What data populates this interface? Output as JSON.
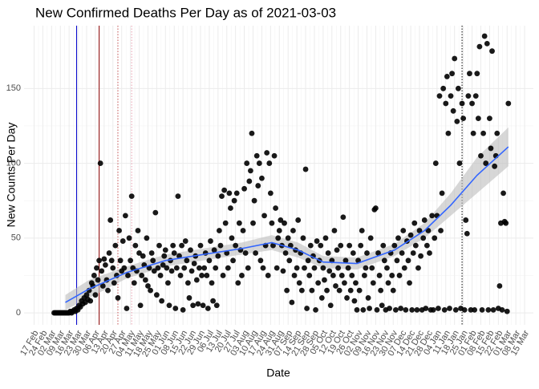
{
  "chart_data": {
    "type": "scatter",
    "title": "New Confirmed Deaths Per Day as of 2021-03-03",
    "x_label": "Date",
    "y_label": "New Counts Per Day",
    "xlim": [
      "2020-02-09",
      "2021-03-22"
    ],
    "ylim": [
      -8,
      192
    ],
    "yticks": [
      0,
      50,
      100,
      150
    ],
    "xticks": [
      {
        "value": "2020-02-17",
        "label": "17 Feb"
      },
      {
        "value": "2020-02-24",
        "label": "24 Feb"
      },
      {
        "value": "2020-03-02",
        "label": "02 Mar"
      },
      {
        "value": "2020-03-09",
        "label": "09 Mar"
      },
      {
        "value": "2020-03-16",
        "label": "16 Mar"
      },
      {
        "value": "2020-03-23",
        "label": "23 Mar"
      },
      {
        "value": "2020-03-30",
        "label": "30 Mar"
      },
      {
        "value": "2020-04-06",
        "label": "06 Apr"
      },
      {
        "value": "2020-04-13",
        "label": "13 Apr"
      },
      {
        "value": "2020-04-20",
        "label": "20 Apr"
      },
      {
        "value": "2020-04-27",
        "label": "27 Apr"
      },
      {
        "value": "2020-05-04",
        "label": "04 May"
      },
      {
        "value": "2020-05-11",
        "label": "11 May"
      },
      {
        "value": "2020-05-18",
        "label": "18 May"
      },
      {
        "value": "2020-05-25",
        "label": "25 May"
      },
      {
        "value": "2020-06-01",
        "label": "01 Jun"
      },
      {
        "value": "2020-06-08",
        "label": "08 Jun"
      },
      {
        "value": "2020-06-15",
        "label": "15 Jun"
      },
      {
        "value": "2020-06-22",
        "label": "22 Jun"
      },
      {
        "value": "2020-06-29",
        "label": "29 Jun"
      },
      {
        "value": "2020-07-06",
        "label": "06 Jul"
      },
      {
        "value": "2020-07-13",
        "label": "13 Jul"
      },
      {
        "value": "2020-07-20",
        "label": "20 Jul"
      },
      {
        "value": "2020-07-27",
        "label": "27 Jul"
      },
      {
        "value": "2020-08-03",
        "label": "03 Aug"
      },
      {
        "value": "2020-08-10",
        "label": "10 Aug"
      },
      {
        "value": "2020-08-17",
        "label": "17 Aug"
      },
      {
        "value": "2020-08-24",
        "label": "24 Aug"
      },
      {
        "value": "2020-08-31",
        "label": "31 Aug"
      },
      {
        "value": "2020-09-07",
        "label": "07 Sep"
      },
      {
        "value": "2020-09-14",
        "label": "14 Sep"
      },
      {
        "value": "2020-09-21",
        "label": "21 Sep"
      },
      {
        "value": "2020-09-28",
        "label": "28 Sep"
      },
      {
        "value": "2020-10-05",
        "label": "05 Oct"
      },
      {
        "value": "2020-10-12",
        "label": "12 Oct"
      },
      {
        "value": "2020-10-19",
        "label": "19 Oct"
      },
      {
        "value": "2020-10-26",
        "label": "26 Oct"
      },
      {
        "value": "2020-11-02",
        "label": "02 Nov"
      },
      {
        "value": "2020-11-09",
        "label": "09 Nov"
      },
      {
        "value": "2020-11-16",
        "label": "16 Nov"
      },
      {
        "value": "2020-11-23",
        "label": "23 Nov"
      },
      {
        "value": "2020-11-30",
        "label": "30 Nov"
      },
      {
        "value": "2020-12-07",
        "label": "07 Dec"
      },
      {
        "value": "2020-12-14",
        "label": "14 Dec"
      },
      {
        "value": "2020-12-21",
        "label": "21 Dec"
      },
      {
        "value": "2020-12-28",
        "label": "28 Dec"
      },
      {
        "value": "2021-01-04",
        "label": "04 Jan"
      },
      {
        "value": "2021-01-11",
        "label": "11 Jan"
      },
      {
        "value": "2021-01-18",
        "label": "18 Jan"
      },
      {
        "value": "2021-01-25",
        "label": "25 Jan"
      },
      {
        "value": "2021-02-01",
        "label": "01 Feb"
      },
      {
        "value": "2021-02-08",
        "label": "08 Feb"
      },
      {
        "value": "2021-02-15",
        "label": "15 Feb"
      },
      {
        "value": "2021-02-22",
        "label": "22 Feb"
      },
      {
        "value": "2021-03-01",
        "label": "01 Mar"
      },
      {
        "value": "2021-03-08",
        "label": "08 Mar"
      },
      {
        "value": "2021-03-15",
        "label": "15 Mar"
      }
    ],
    "grid": true,
    "point_color": "#000000",
    "vlines": [
      {
        "x": "2020-03-22",
        "color": "#0000cc",
        "style": "solid"
      },
      {
        "x": "2020-04-09",
        "color": "#8b0000",
        "style": "solid"
      },
      {
        "x": "2020-04-24",
        "color": "#cd5c5c",
        "style": "dotted"
      },
      {
        "x": "2020-05-05",
        "color": "#e8a0b0",
        "style": "dotted"
      },
      {
        "x": "2021-01-24",
        "color": "#000000",
        "style": "dotted"
      }
    ],
    "smooth": {
      "color": "#3366ff",
      "band_color": "#bdbdbd",
      "x": [
        "2020-03-13",
        "2020-04-01",
        "2020-05-01",
        "2020-06-01",
        "2020-07-01",
        "2020-08-01",
        "2020-08-25",
        "2020-09-15",
        "2020-10-05",
        "2020-11-01",
        "2020-12-01",
        "2020-12-25",
        "2021-01-15",
        "2021-02-05",
        "2021-03-02"
      ],
      "values": [
        7,
        16,
        27,
        35,
        39,
        43,
        47,
        42,
        34,
        33,
        42,
        55,
        72,
        92,
        111
      ],
      "lower": [
        2,
        10,
        23,
        31,
        35,
        39,
        42,
        37,
        30,
        29,
        38,
        50,
        65,
        80,
        98
      ],
      "upper": [
        12,
        22,
        31,
        39,
        43,
        47,
        52,
        47,
        38,
        37,
        46,
        60,
        80,
        104,
        124
      ]
    },
    "x": [
      "2020-03-04",
      "2020-03-05",
      "2020-03-06",
      "2020-03-07",
      "2020-03-08",
      "2020-03-09",
      "2020-03-10",
      "2020-03-11",
      "2020-03-12",
      "2020-03-13",
      "2020-03-14",
      "2020-03-15",
      "2020-03-16",
      "2020-03-17",
      "2020-03-18",
      "2020-03-19",
      "2020-03-20",
      "2020-03-21",
      "2020-03-22",
      "2020-03-23",
      "2020-03-24",
      "2020-03-25",
      "2020-03-26",
      "2020-03-27",
      "2020-03-28",
      "2020-03-29",
      "2020-03-30",
      "2020-03-31",
      "2020-04-01",
      "2020-04-02",
      "2020-04-03",
      "2020-04-04",
      "2020-04-05",
      "2020-04-06",
      "2020-04-07",
      "2020-04-08",
      "2020-04-09",
      "2020-04-10",
      "2020-04-11",
      "2020-04-12",
      "2020-04-13",
      "2020-04-14",
      "2020-04-15",
      "2020-04-16",
      "2020-04-17",
      "2020-04-18",
      "2020-04-19",
      "2020-04-20",
      "2020-04-21",
      "2020-04-22",
      "2020-04-23",
      "2020-04-24",
      "2020-04-25",
      "2020-04-26",
      "2020-04-27",
      "2020-04-28",
      "2020-04-29",
      "2020-04-30",
      "2020-05-01",
      "2020-05-02",
      "2020-05-03",
      "2020-05-04",
      "2020-05-05",
      "2020-05-06",
      "2020-05-07",
      "2020-05-08",
      "2020-05-09",
      "2020-05-10",
      "2020-05-11",
      "2020-05-12",
      "2020-05-13",
      "2020-05-14",
      "2020-05-15",
      "2020-05-16",
      "2020-05-17",
      "2020-05-18",
      "2020-05-19",
      "2020-05-20",
      "2020-05-21",
      "2020-05-22",
      "2020-05-23",
      "2020-05-24",
      "2020-05-25",
      "2020-05-26",
      "2020-05-27",
      "2020-05-28",
      "2020-05-29",
      "2020-05-30",
      "2020-05-31",
      "2020-06-01",
      "2020-06-02",
      "2020-06-03",
      "2020-06-04",
      "2020-06-05",
      "2020-06-06",
      "2020-06-07",
      "2020-06-08",
      "2020-06-09",
      "2020-06-10",
      "2020-06-11",
      "2020-06-12",
      "2020-06-13",
      "2020-06-14",
      "2020-06-15",
      "2020-06-16",
      "2020-06-17",
      "2020-06-18",
      "2020-06-19",
      "2020-06-20",
      "2020-06-21",
      "2020-06-22",
      "2020-06-23",
      "2020-06-24",
      "2020-06-25",
      "2020-06-26",
      "2020-06-27",
      "2020-06-28",
      "2020-06-29",
      "2020-06-30",
      "2020-07-01",
      "2020-07-02",
      "2020-07-03",
      "2020-07-04",
      "2020-07-05",
      "2020-07-06",
      "2020-07-07",
      "2020-07-08",
      "2020-07-09",
      "2020-07-10",
      "2020-07-11",
      "2020-07-12",
      "2020-07-13",
      "2020-07-14",
      "2020-07-15",
      "2020-07-16",
      "2020-07-17",
      "2020-07-18",
      "2020-07-19",
      "2020-07-20",
      "2020-07-21",
      "2020-07-22",
      "2020-07-23",
      "2020-07-24",
      "2020-07-25",
      "2020-07-26",
      "2020-07-27",
      "2020-07-28",
      "2020-07-29",
      "2020-07-30",
      "2020-07-31",
      "2020-08-01",
      "2020-08-02",
      "2020-08-03",
      "2020-08-04",
      "2020-08-05",
      "2020-08-06",
      "2020-08-07",
      "2020-08-08",
      "2020-08-09",
      "2020-08-10",
      "2020-08-11",
      "2020-08-12",
      "2020-08-13",
      "2020-08-14",
      "2020-08-15",
      "2020-08-16",
      "2020-08-17",
      "2020-08-18",
      "2020-08-19",
      "2020-08-20",
      "2020-08-21",
      "2020-08-22",
      "2020-08-23",
      "2020-08-24",
      "2020-08-25",
      "2020-08-26",
      "2020-08-27",
      "2020-08-28",
      "2020-08-29",
      "2020-08-30",
      "2020-08-31",
      "2020-09-01",
      "2020-09-02",
      "2020-09-03",
      "2020-09-04",
      "2020-09-05",
      "2020-09-06",
      "2020-09-07",
      "2020-09-08",
      "2020-09-09",
      "2020-09-10",
      "2020-09-11",
      "2020-09-12",
      "2020-09-13",
      "2020-09-14",
      "2020-09-15",
      "2020-09-16",
      "2020-09-17",
      "2020-09-18",
      "2020-09-19",
      "2020-09-20",
      "2020-09-21",
      "2020-09-22",
      "2020-09-23",
      "2020-09-24",
      "2020-09-25",
      "2020-09-26",
      "2020-09-27",
      "2020-09-28",
      "2020-09-29",
      "2020-09-30",
      "2020-10-01",
      "2020-10-02",
      "2020-10-03",
      "2020-10-04",
      "2020-10-05",
      "2020-10-06",
      "2020-10-07",
      "2020-10-08",
      "2020-10-09",
      "2020-10-10",
      "2020-10-11",
      "2020-10-12",
      "2020-10-13",
      "2020-10-14",
      "2020-10-15",
      "2020-10-16",
      "2020-10-17",
      "2020-10-18",
      "2020-10-19",
      "2020-10-20",
      "2020-10-21",
      "2020-10-22",
      "2020-10-23",
      "2020-10-24",
      "2020-10-25",
      "2020-10-26",
      "2020-10-27",
      "2020-10-28",
      "2020-10-29",
      "2020-10-30",
      "2020-10-31",
      "2020-11-01",
      "2020-11-02",
      "2020-11-03",
      "2020-11-04",
      "2020-11-05",
      "2020-11-06",
      "2020-11-07",
      "2020-11-08",
      "2020-11-09",
      "2020-11-10",
      "2020-11-11",
      "2020-11-12",
      "2020-11-13",
      "2020-11-14",
      "2020-11-15",
      "2020-11-16",
      "2020-11-17",
      "2020-11-18",
      "2020-11-19",
      "2020-11-20",
      "2020-11-21",
      "2020-11-22",
      "2020-11-23",
      "2020-11-24",
      "2020-11-25",
      "2020-11-26",
      "2020-11-27",
      "2020-11-28",
      "2020-11-29",
      "2020-11-30",
      "2020-12-01",
      "2020-12-02",
      "2020-12-03",
      "2020-12-04",
      "2020-12-05",
      "2020-12-06",
      "2020-12-07",
      "2020-12-08",
      "2020-12-09",
      "2020-12-10",
      "2020-12-11",
      "2020-12-12",
      "2020-12-13",
      "2020-12-14",
      "2020-12-15",
      "2020-12-16",
      "2020-12-17",
      "2020-12-18",
      "2020-12-19",
      "2020-12-20",
      "2020-12-21",
      "2020-12-22",
      "2020-12-23",
      "2020-12-24",
      "2020-12-25",
      "2020-12-26",
      "2020-12-27",
      "2020-12-28",
      "2020-12-29",
      "2020-12-30",
      "2020-12-31",
      "2021-01-01",
      "2021-01-02",
      "2021-01-03",
      "2021-01-04",
      "2021-01-05",
      "2021-01-06",
      "2021-01-07",
      "2021-01-08",
      "2021-01-09",
      "2021-01-10",
      "2021-01-11",
      "2021-01-12",
      "2021-01-13",
      "2021-01-14",
      "2021-01-15",
      "2021-01-16",
      "2021-01-17",
      "2021-01-18",
      "2021-01-19",
      "2021-01-20",
      "2021-01-21",
      "2021-01-22",
      "2021-01-23",
      "2021-01-24",
      "2021-01-25",
      "2021-01-26",
      "2021-01-27",
      "2021-01-28",
      "2021-01-29",
      "2021-01-30",
      "2021-01-31",
      "2021-02-01",
      "2021-02-02",
      "2021-02-03",
      "2021-02-04",
      "2021-02-05",
      "2021-02-06",
      "2021-02-07",
      "2021-02-08",
      "2021-02-09",
      "2021-02-10",
      "2021-02-11",
      "2021-02-12",
      "2021-02-13",
      "2021-02-14",
      "2021-02-15",
      "2021-02-16",
      "2021-02-17",
      "2021-02-18",
      "2021-02-19",
      "2021-02-20",
      "2021-02-21",
      "2021-02-22",
      "2021-02-23",
      "2021-02-24",
      "2021-02-25",
      "2021-02-26",
      "2021-02-27",
      "2021-02-28",
      "2021-03-01",
      "2021-03-02"
    ],
    "values": [
      0,
      0,
      0,
      0,
      0,
      0,
      0,
      0,
      0,
      0,
      0,
      0,
      0,
      1,
      0,
      1,
      2,
      1,
      3,
      2,
      5,
      4,
      8,
      6,
      10,
      7,
      12,
      9,
      15,
      8,
      20,
      18,
      25,
      12,
      30,
      22,
      35,
      100,
      28,
      18,
      36,
      32,
      22,
      15,
      40,
      62,
      35,
      30,
      20,
      45,
      25,
      10,
      55,
      35,
      28,
      48,
      30,
      65,
      3,
      25,
      50,
      35,
      78,
      30,
      20,
      45,
      28,
      55,
      40,
      5,
      25,
      38,
      32,
      22,
      50,
      18,
      30,
      15,
      40,
      35,
      28,
      67,
      12,
      30,
      45,
      25,
      8,
      32,
      38,
      42,
      30,
      20,
      5,
      35,
      28,
      45,
      40,
      3,
      30,
      78,
      38,
      25,
      45,
      2,
      30,
      48,
      35,
      20,
      10,
      42,
      28,
      5,
      33,
      38,
      22,
      6,
      30,
      45,
      25,
      5,
      30,
      40,
      25,
      3,
      35,
      48,
      20,
      8,
      42,
      30,
      5,
      38,
      55,
      45,
      78,
      25,
      82,
      60,
      40,
      30,
      80,
      70,
      50,
      35,
      75,
      45,
      80,
      20,
      60,
      42,
      25,
      55,
      83,
      40,
      100,
      30,
      88,
      95,
      120,
      60,
      75,
      40,
      105,
      85,
      100,
      35,
      90,
      30,
      65,
      45,
      107,
      25,
      100,
      80,
      60,
      45,
      105,
      70,
      30,
      50,
      55,
      62,
      45,
      28,
      60,
      40,
      15,
      50,
      35,
      45,
      7,
      55,
      25,
      42,
      30,
      62,
      20,
      40,
      15,
      50,
      30,
      96,
      3,
      35,
      25,
      45,
      15,
      38,
      30,
      2,
      48,
      20,
      35,
      45,
      10,
      30,
      22,
      50,
      15,
      40,
      28,
      5,
      35,
      25,
      55,
      18,
      42,
      30,
      15,
      45,
      25,
      64,
      20,
      35,
      10,
      30,
      45,
      15,
      25,
      40,
      8,
      20,
      2,
      35,
      15,
      45,
      55,
      2,
      25,
      30,
      40,
      10,
      3,
      50,
      30,
      20,
      69,
      70,
      2,
      40,
      25,
      15,
      5,
      45,
      35,
      2,
      30,
      20,
      3,
      40,
      25,
      15,
      45,
      2,
      35,
      50,
      25,
      3,
      40,
      55,
      30,
      2,
      48,
      35,
      20,
      52,
      2,
      40,
      60,
      45,
      2,
      30,
      55,
      38,
      2,
      50,
      62,
      3,
      45,
      55,
      40,
      2,
      65,
      2,
      50,
      100,
      65,
      3,
      145,
      55,
      80,
      150,
      2,
      140,
      158,
      120,
      3,
      145,
      160,
      135,
      170,
      2,
      128,
      150,
      100,
      3,
      140,
      130,
      2,
      62,
      53,
      145,
      160,
      2,
      140,
      120,
      2,
      145,
      160,
      130,
      178,
      105,
      2,
      120,
      185,
      100,
      180,
      2,
      130,
      110,
      175,
      2,
      98,
      105,
      120,
      3,
      18,
      60,
      2,
      80,
      61,
      60,
      1,
      140
    ]
  }
}
